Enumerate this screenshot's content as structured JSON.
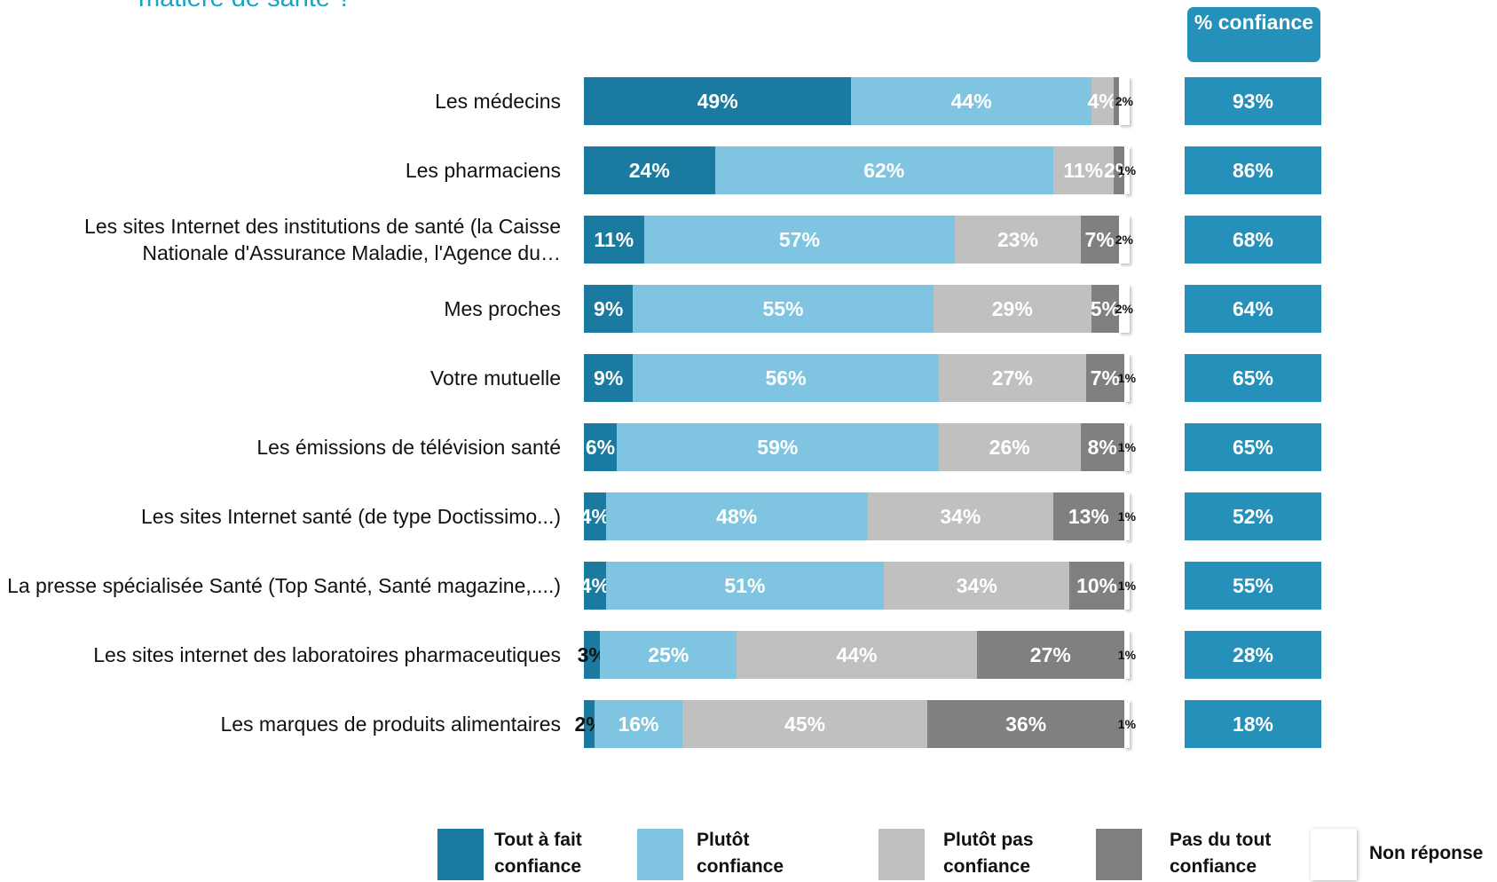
{
  "chart_data": {
    "type": "bar",
    "orientation": "horizontal",
    "stacked": true,
    "title": "matière de santé ?",
    "xlim": [
      0,
      100
    ],
    "categories": [
      "Les médecins",
      "Les pharmaciens",
      "Les sites Internet des institutions de santé (la Caisse Nationale d'Assurance Maladie, l'Agence du…",
      "Mes proches",
      "Votre mutuelle",
      "Les émissions de télévision santé",
      "Les sites Internet santé (de type Doctissimo...)",
      "La presse spécialisée Santé (Top Santé, Santé magazine,....)",
      "Les sites internet des laboratoires pharmaceutiques",
      "Les marques de produits alimentaires"
    ],
    "series": [
      {
        "name": "Tout à fait confiance",
        "color": "#1b7a9f",
        "values": [
          49,
          24,
          11,
          9,
          9,
          6,
          4,
          4,
          3,
          2
        ],
        "value_labels": [
          "49%",
          "24%",
          "11%",
          "9%",
          "9%",
          "6%",
          "4%",
          "4%",
          "3%",
          "2%"
        ]
      },
      {
        "name": "Plutôt confiance",
        "color": "#7fc5e1",
        "values": [
          44,
          62,
          57,
          55,
          56,
          59,
          48,
          51,
          25,
          16
        ],
        "value_labels": [
          "44%",
          "62%",
          "57%",
          "55%",
          "56%",
          "59%",
          "48%",
          "51%",
          "25%",
          "16%"
        ]
      },
      {
        "name": "Plutôt pas confiance",
        "color": "#c0c0c0",
        "values": [
          4,
          11,
          23,
          29,
          27,
          26,
          34,
          34,
          44,
          45
        ],
        "value_labels": [
          "4%",
          "11%",
          "23%",
          "29%",
          "27%",
          "26%",
          "34%",
          "34%",
          "44%",
          "45%"
        ]
      },
      {
        "name": "Pas du tout confiance",
        "color": "#808080",
        "values": [
          1,
          2,
          7,
          5,
          7,
          8,
          13,
          10,
          27,
          36
        ],
        "value_labels": [
          null,
          "2%",
          "7%",
          "5%",
          "7%",
          "8%",
          "13%",
          "10%",
          "27%",
          "36%"
        ]
      },
      {
        "name": "Non réponse",
        "color": "#ffffff",
        "values": [
          2,
          1,
          2,
          2,
          1,
          1,
          1,
          1,
          1,
          1
        ],
        "value_labels": [
          "2%",
          "1%",
          "2%",
          "2%",
          "1%",
          "1%",
          "1%",
          "1%",
          "1%",
          "1%"
        ]
      }
    ],
    "totals": {
      "title": "% confiance",
      "color": "#2590ba",
      "values": [
        93,
        86,
        68,
        64,
        65,
        65,
        52,
        55,
        28,
        18
      ],
      "value_labels": [
        "93%",
        "86%",
        "68%",
        "64%",
        "65%",
        "65%",
        "52%",
        "55%",
        "28%",
        "18%"
      ]
    }
  }
}
